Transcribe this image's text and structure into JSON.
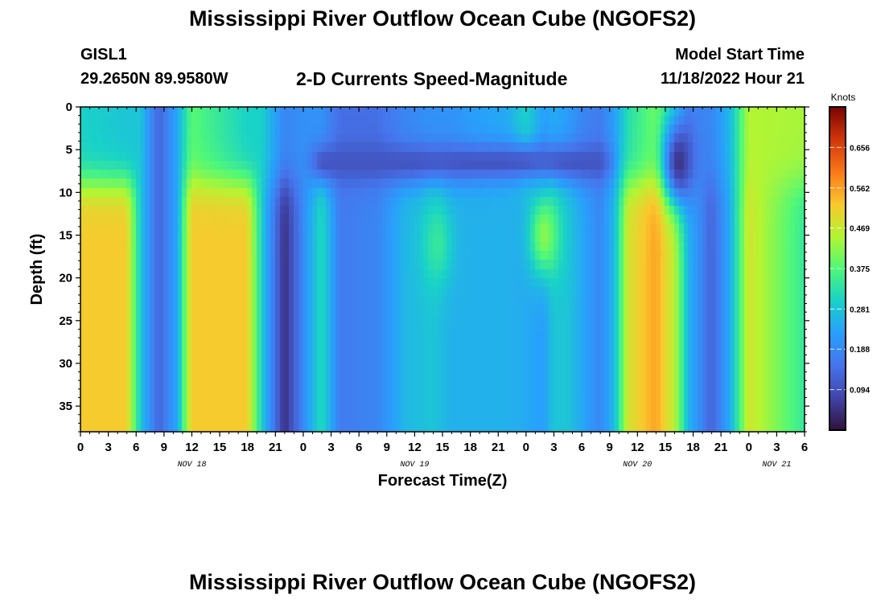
{
  "header": {
    "title": "Mississippi River Outflow Ocean Cube (NGOFS2)",
    "station": "GISL1",
    "coords": "29.2650N  89.9580W",
    "plot_title": "2-D Currents Speed-Magnitude",
    "model_start_label": "Model Start Time",
    "model_start_value": "11/18/2022 Hour 21",
    "bottom_title": "Mississippi River Outflow Ocean Cube (NGOFS2)"
  },
  "chart_data": {
    "type": "heatmap",
    "title": "2-D Currents Speed-Magnitude",
    "xlabel": "Forecast Time(Z)",
    "ylabel": "Depth (ft)",
    "x_range_hours": [
      0,
      78
    ],
    "x_tick_labels": [
      "0",
      "3",
      "6",
      "9",
      "12",
      "15",
      "18",
      "21",
      "0",
      "3",
      "6",
      "9",
      "12",
      "15",
      "18",
      "21",
      "0",
      "3",
      "6",
      "9",
      "12",
      "15",
      "18",
      "21",
      "0",
      "3",
      "6"
    ],
    "x_date_labels": [
      {
        "label": "NOV 18",
        "hour": 12
      },
      {
        "label": "NOV 19",
        "hour": 36
      },
      {
        "label": "NOV 20",
        "hour": 60
      },
      {
        "label": "NOV 21",
        "hour": 75
      }
    ],
    "y_range_ft": [
      0,
      38
    ],
    "y_reversed": true,
    "y_ticks": [
      0,
      5,
      10,
      15,
      20,
      25,
      30,
      35
    ],
    "colorbar": {
      "label": "Knots",
      "min": 0.0,
      "max": 0.75,
      "ticks": [
        "0.656",
        "0.562",
        "0.469",
        "0.375",
        "0.281",
        "0.188",
        "0.094"
      ]
    },
    "column_profiles": [
      {
        "hour": 0,
        "surface": 0.3,
        "deep": 0.52
      },
      {
        "hour": 5,
        "surface": 0.28,
        "deep": 0.52
      },
      {
        "hour": 6.5,
        "surface": 0.28,
        "deep": 0.28
      },
      {
        "hour": 8.5,
        "surface": 0.12,
        "deep": 0.12
      },
      {
        "hour": 10.5,
        "surface": 0.24,
        "deep": 0.24
      },
      {
        "hour": 12,
        "surface": 0.38,
        "deep": 0.52
      },
      {
        "hour": 18,
        "surface": 0.3,
        "deep": 0.52
      },
      {
        "hour": 19.5,
        "surface": 0.3,
        "deep": 0.3
      },
      {
        "hour": 22,
        "surface": 0.18,
        "deep": 0.04
      },
      {
        "hour": 24.5,
        "surface": 0.2,
        "deep": 0.22
      },
      {
        "hour": 26,
        "surface": 0.2,
        "deep": 0.32
      },
      {
        "hour": 28,
        "surface": 0.14,
        "deep": 0.16
      },
      {
        "hour": 32,
        "surface": 0.14,
        "deep": 0.18
      },
      {
        "hour": 35,
        "surface": 0.18,
        "deep": 0.26
      },
      {
        "hour": 38,
        "surface": 0.2,
        "deep": 0.28
      },
      {
        "hour": 40,
        "surface": 0.2,
        "deep": 0.25
      },
      {
        "hour": 42,
        "surface": 0.22,
        "deep": 0.25
      },
      {
        "hour": 46,
        "surface": 0.24,
        "deep": 0.25
      },
      {
        "hour": 48,
        "surface": 0.3,
        "deep": 0.24
      },
      {
        "hour": 50,
        "surface": 0.22,
        "deep": 0.22
      },
      {
        "hour": 51,
        "surface": 0.24,
        "deep": 0.28
      },
      {
        "hour": 52.5,
        "surface": 0.22,
        "deep": 0.28
      },
      {
        "hour": 54,
        "surface": 0.18,
        "deep": 0.24
      },
      {
        "hour": 56,
        "surface": 0.16,
        "deep": 0.18
      },
      {
        "hour": 57.5,
        "surface": 0.22,
        "deep": 0.26
      },
      {
        "hour": 59,
        "surface": 0.32,
        "deep": 0.48
      },
      {
        "hour": 62,
        "surface": 0.4,
        "deep": 0.56
      },
      {
        "hour": 64,
        "surface": 0.32,
        "deep": 0.46
      },
      {
        "hour": 65.5,
        "surface": 0.18,
        "deep": 0.26
      },
      {
        "hour": 68,
        "surface": 0.18,
        "deep": 0.12
      },
      {
        "hour": 70,
        "surface": 0.26,
        "deep": 0.24
      },
      {
        "hour": 72,
        "surface": 0.45,
        "deep": 0.48
      },
      {
        "hour": 78,
        "surface": 0.44,
        "deep": 0.34
      }
    ],
    "features": [
      {
        "note": "mid-depth low-speed band",
        "hour_start": 26,
        "hour_end": 56,
        "depth_ft": 6.5,
        "value": 0.1
      },
      {
        "note": "mid-depth speed maximum",
        "hour": 50,
        "depth_ft": 15,
        "value": 0.42
      },
      {
        "note": "mid-depth speed maximum",
        "hour": 38.5,
        "depth_ft": 16,
        "value": 0.34
      },
      {
        "note": "local speed minimum",
        "hour": 64.5,
        "depth_ft": 6.5,
        "value": 0.05
      }
    ]
  }
}
